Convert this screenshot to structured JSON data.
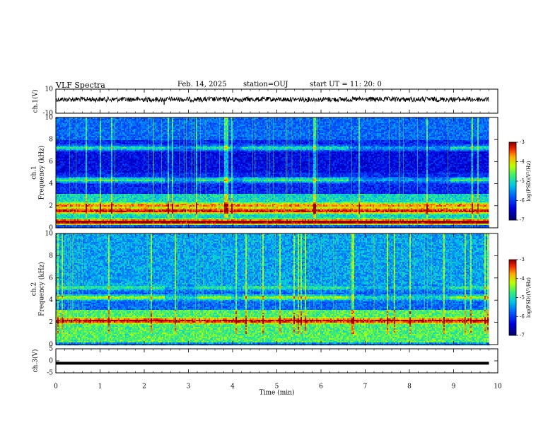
{
  "header": {
    "title": "VLF Spectra",
    "date": "Feb. 14, 2025",
    "station": "station=OUJ",
    "start": "start  UT  =   11: 20: 0"
  },
  "chart_data": [
    {
      "type": "line",
      "ylabel": "ch.1(V)",
      "ylim": [
        -10,
        10
      ],
      "y_ticklabels": [
        "10",
        "-10"
      ],
      "xlim": [
        0,
        10
      ],
      "note_color": "#000000",
      "baseline": 1.5,
      "excursions": [
        {
          "x": 2.45,
          "y": -3
        }
      ]
    },
    {
      "type": "heatmap",
      "ylabel": "ch.1",
      "ylabel2": "Frequency (kHz)",
      "ylim": [
        0,
        10
      ],
      "y_ticklabels": [
        "0",
        "2",
        "4",
        "6",
        "8",
        "10"
      ],
      "xlim": [
        0,
        10
      ],
      "data_end_min": 9.8,
      "colorbar": {
        "label": "log(PSD)(V²/Hz)",
        "range": [
          -7,
          -3
        ],
        "ticklabels": [
          "-7",
          "-6",
          "-5",
          "-4",
          "-3"
        ]
      },
      "bands": [
        {
          "f": 0.6,
          "level": 1.0
        },
        {
          "f": 1.6,
          "level": 0.8
        },
        {
          "f": 2.1,
          "level": 0.6
        },
        {
          "f": 4.4,
          "level": 0.55
        },
        {
          "f": 7.3,
          "level": 0.45
        }
      ]
    },
    {
      "type": "heatmap",
      "ylabel": "ch.2",
      "ylabel2": "Frequency (kHz)",
      "ylim": [
        0,
        10
      ],
      "y_ticklabels": [
        "0",
        "2",
        "4",
        "6",
        "8",
        "10"
      ],
      "xlim": [
        0,
        10
      ],
      "data_end_min": 9.8,
      "colorbar": {
        "label": "log(PSD)(V²/Hz)",
        "range": [
          -7,
          -3
        ],
        "ticklabels": [
          "-7",
          "-6",
          "-5",
          "-4",
          "-3"
        ]
      },
      "bands": [
        {
          "f": 2.2,
          "level": 0.65
        },
        {
          "f": 4.3,
          "level": 0.55
        },
        {
          "f": 5.2,
          "level": 0.35
        }
      ]
    },
    {
      "type": "line",
      "ylabel": "ch.3(V)",
      "ylim": [
        -5,
        5
      ],
      "y_ticklabels": [
        "5",
        "0",
        "-5"
      ],
      "xlim": [
        0,
        10
      ],
      "value": -1.0,
      "xlabel": "Time (min)",
      "x_ticklabels": [
        "0",
        "1",
        "2",
        "3",
        "4",
        "5",
        "6",
        "7",
        "8",
        "9",
        "10"
      ]
    }
  ]
}
